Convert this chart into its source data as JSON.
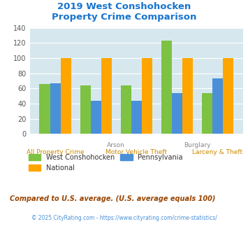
{
  "title_line1": "2019 West Conshohocken",
  "title_line2": "Property Crime Comparison",
  "title_color": "#1874CD",
  "categories": [
    "All Property Crime",
    "Arson",
    "Motor Vehicle Theft",
    "Burglary",
    "Larceny & Theft"
  ],
  "west_conshohocken": [
    66,
    64,
    64,
    123,
    54
  ],
  "national": [
    100,
    100,
    100,
    100,
    100
  ],
  "pennsylvania": [
    67,
    44,
    44,
    54,
    73
  ],
  "color_west": "#7DC242",
  "color_national": "#FFA500",
  "color_pennsylvania": "#4A90D9",
  "ylim": [
    0,
    140
  ],
  "yticks": [
    0,
    20,
    40,
    60,
    80,
    100,
    120,
    140
  ],
  "bar_width": 0.26,
  "bg_color": "#D6E8EE",
  "legend_labels": [
    "West Conshohocken",
    "National",
    "Pennsylvania"
  ],
  "footnote1": "Compared to U.S. average. (U.S. average equals 100)",
  "footnote2": "© 2025 CityRating.com - https://www.cityrating.com/crime-statistics/",
  "footnote1_color": "#994400",
  "footnote2_color": "#4A90D9",
  "label_color_top": "#888888",
  "label_color_bottom": "#CC8800"
}
